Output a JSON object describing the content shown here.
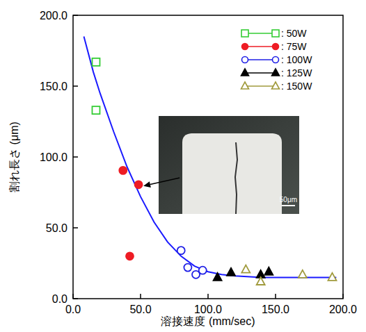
{
  "chart_data": {
    "type": "scatter",
    "x_label": "溶接速度 (mm/sec)",
    "y_label": "割れ長さ (μm)",
    "xlim": [
      0,
      200
    ],
    "ylim": [
      0,
      200
    ],
    "xticks": [
      {
        "value": 0,
        "label": "0.0"
      },
      {
        "value": 50,
        "label": "50.0"
      },
      {
        "value": 100,
        "label": "100.0"
      },
      {
        "value": 150,
        "label": "150.0"
      },
      {
        "value": 200,
        "label": "200.0"
      }
    ],
    "yticks": [
      {
        "value": 0,
        "label": "0.0"
      },
      {
        "value": 50,
        "label": "50.0"
      },
      {
        "value": 100,
        "label": "100.0"
      },
      {
        "value": 150,
        "label": "150.0"
      },
      {
        "value": 200,
        "label": "200.0"
      }
    ],
    "legend": "top-right",
    "annotations": [
      {
        "text": "50μm"
      }
    ],
    "series": [
      {
        "type": "line",
        "color": "#1a1aff",
        "line_style": "solid",
        "x": [
          8,
          15,
          20,
          30,
          40,
          50,
          60,
          70,
          80,
          90,
          100,
          110,
          120,
          140,
          160,
          195
        ],
        "values": [
          185,
          160,
          145,
          118,
          93,
          72,
          54,
          40,
          30,
          23,
          19,
          17,
          16,
          15,
          15,
          15
        ]
      },
      {
        "name": ":  50W",
        "color": "#33cc33",
        "marker": "square-open",
        "x": [
          17,
          17
        ],
        "values": [
          167,
          133
        ]
      },
      {
        "name": ":  75W",
        "color": "#ee1c24",
        "marker": "circle",
        "x": [
          37,
          48.5,
          42
        ],
        "values": [
          90.5,
          80.5,
          30
        ]
      },
      {
        "name": ": 100W",
        "color": "#1f1fe6",
        "marker": "circle-open",
        "x": [
          80,
          85,
          91,
          96
        ],
        "values": [
          34,
          22,
          17,
          20
        ]
      },
      {
        "name": ": 125W",
        "color": "#000000",
        "marker": "triangle",
        "x": [
          107,
          117,
          139,
          145
        ],
        "values": [
          15,
          18.5,
          17,
          19
        ]
      },
      {
        "name": ": 150W",
        "color": "#a09a3c",
        "marker": "triangle-open",
        "x": [
          128,
          139,
          170,
          192
        ],
        "values": [
          20.5,
          12,
          17,
          15
        ]
      }
    ]
  }
}
